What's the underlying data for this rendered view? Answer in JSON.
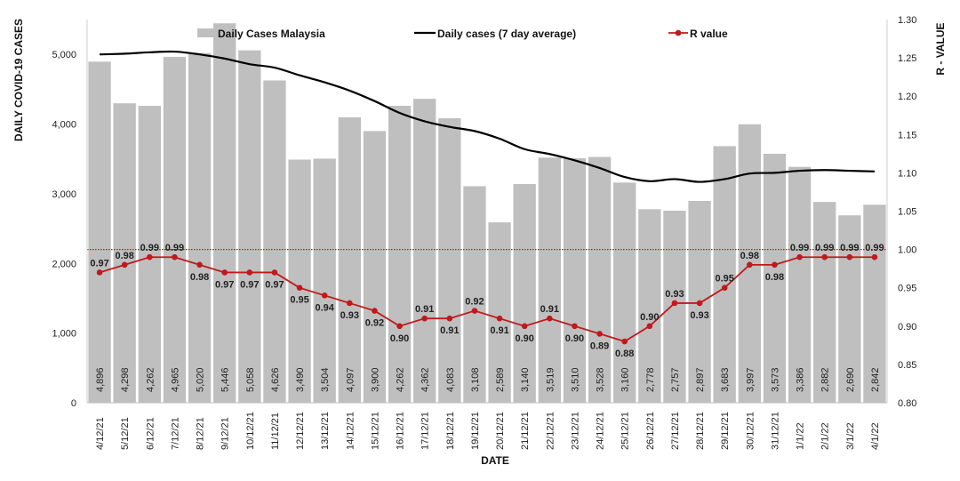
{
  "chart_data": {
    "type": "bar",
    "xlabel": "DATE",
    "ylabel": "DAILY COVID-19 CASES",
    "y2label": "R - VALUE",
    "ylim": [
      0,
      5500
    ],
    "y2lim": [
      0.8,
      1.3
    ],
    "yticks": [
      "0",
      "1,000",
      "2,000",
      "3,000",
      "4,000",
      "5,000"
    ],
    "y2ticks": [
      "0.80",
      "0.85",
      "0.90",
      "0.95",
      "1.00",
      "1.05",
      "1.10",
      "1.15",
      "1.20",
      "1.25",
      "1.30"
    ],
    "categories": [
      "4/12/21",
      "5/12/21",
      "6/12/21",
      "7/12/21",
      "8/12/21",
      "9/12/21",
      "10/12/21",
      "11/12/21",
      "12/12/21",
      "13/12/21",
      "14/12/21",
      "15/12/21",
      "16/12/21",
      "17/12/21",
      "18/12/21",
      "19/12/21",
      "20/12/21",
      "21/12/21",
      "22/12/21",
      "23/12/21",
      "24/12/21",
      "25/12/21",
      "26/12/21",
      "27/12/21",
      "28/12/21",
      "29/12/21",
      "30/12/21",
      "31/12/21",
      "1/1/22",
      "2/1/22",
      "3/1/22",
      "4/1/22"
    ],
    "series": [
      {
        "name": "Daily Cases Malaysia",
        "type": "bar",
        "axis": "left",
        "color": "#bfbfbf",
        "values": [
          4896,
          4298,
          4262,
          4965,
          5020,
          5446,
          5058,
          4626,
          3490,
          3504,
          4097,
          3900,
          4262,
          4362,
          4083,
          3108,
          2589,
          3140,
          3519,
          3510,
          3528,
          3160,
          2778,
          2757,
          2897,
          3683,
          3997,
          3573,
          3386,
          2882,
          2690,
          2842
        ],
        "labels": [
          "4,896",
          "4,298",
          "4,262",
          "4,965",
          "5,020",
          "5,446",
          "5,058",
          "4,626",
          "3,490",
          "3,504",
          "4,097",
          "3,900",
          "4,262",
          "4,362",
          "4,083",
          "3,108",
          "2,589",
          "3,140",
          "3,519",
          "3,510",
          "3,528",
          "3,160",
          "2,778",
          "2,757",
          "2,897",
          "3,683",
          "3,997",
          "3,573",
          "3,386",
          "2,882",
          "2,690",
          "2,842"
        ]
      },
      {
        "name": "Daily cases (7 day average)",
        "type": "line",
        "axis": "left",
        "color": "#000000",
        "values": [
          5000,
          5010,
          5030,
          5040,
          5000,
          4940,
          4860,
          4810,
          4700,
          4600,
          4480,
          4330,
          4160,
          4040,
          3960,
          3900,
          3790,
          3640,
          3570,
          3480,
          3370,
          3240,
          3180,
          3210,
          3170,
          3210,
          3290,
          3300,
          3330,
          3340,
          3330,
          3320
        ]
      },
      {
        "name": "R value",
        "type": "line",
        "axis": "right",
        "color": "#c0191c",
        "values": [
          0.97,
          0.98,
          0.99,
          0.99,
          0.98,
          0.97,
          0.97,
          0.97,
          0.95,
          0.94,
          0.93,
          0.92,
          0.9,
          0.91,
          0.91,
          0.92,
          0.91,
          0.9,
          0.91,
          0.9,
          0.89,
          0.88,
          0.9,
          0.93,
          0.93,
          0.95,
          0.98,
          0.98,
          0.99,
          0.99,
          0.99,
          0.99
        ],
        "labels": [
          "0.97",
          "0.98",
          "0.99",
          "0.99",
          "0.98",
          "0.97",
          "0.97",
          "0.97",
          "0.95",
          "0.94",
          "0.93",
          "0.92",
          "0.90",
          "0.91",
          "0.91",
          "0.92",
          "0.91",
          "0.90",
          "0.91",
          "0.90",
          "0.89",
          "0.88",
          "0.90",
          "0.93",
          "0.93",
          "0.95",
          "0.98",
          "0.98",
          "0.99",
          "0.99",
          "0.99",
          "0.99"
        ]
      }
    ],
    "reference_line": {
      "axis": "right",
      "value": 1.0,
      "color": "#c0191c",
      "style": "dotted"
    },
    "legend_position": "top",
    "grid": false
  }
}
